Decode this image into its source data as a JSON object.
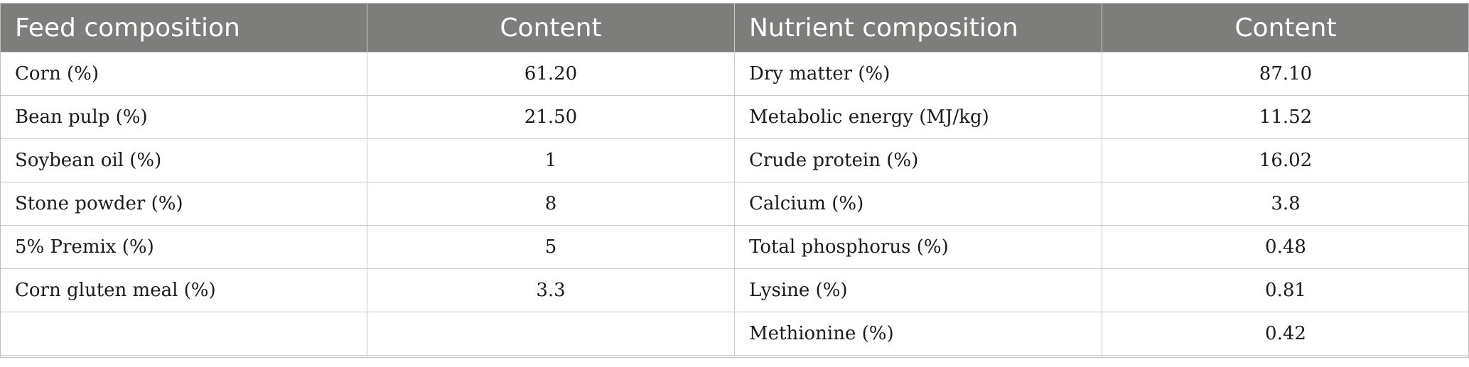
{
  "table": {
    "headers": [
      "Feed composition",
      "Content",
      "Nutrient composition",
      "Content"
    ],
    "rows": [
      [
        "Corn (%)",
        "61.20",
        "Dry matter (%)",
        "87.10"
      ],
      [
        "Bean pulp (%)",
        "21.50",
        "Metabolic energy (MJ/kg)",
        "11.52"
      ],
      [
        "Soybean oil (%)",
        "1",
        "Crude protein (%)",
        "16.02"
      ],
      [
        "Stone powder (%)",
        "8",
        "Calcium (%)",
        "3.8"
      ],
      [
        "5% Premix (%)",
        "5",
        "Total phosphorus (%)",
        "0.48"
      ],
      [
        "Corn gluten meal (%)",
        "3.3",
        "Lysine (%)",
        "0.81"
      ],
      [
        "",
        "",
        "Methionine (%)",
        "0.42"
      ]
    ]
  },
  "colors": {
    "header_bg": "#7d7d7c",
    "header_text": "#ffffff",
    "grid": "#c9c9c9"
  }
}
